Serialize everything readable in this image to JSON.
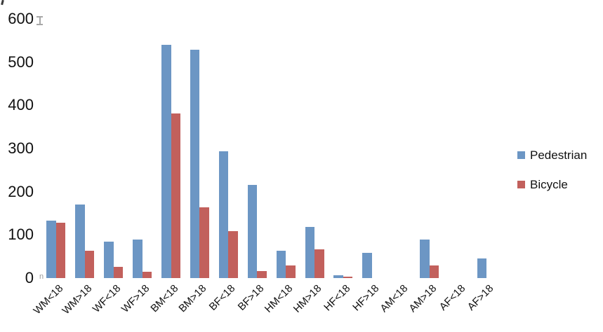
{
  "chart_data": {
    "type": "bar",
    "title": "",
    "xlabel": "",
    "ylabel": "",
    "categories": [
      "WM<18",
      "WM>18",
      "WF<18",
      "WF>18",
      "BM<18",
      "BM>18",
      "BF<18",
      "BF>18",
      "HM<18",
      "HM>18",
      "HF<18",
      "HF>18",
      "AM<18",
      "AM>18",
      "AF<18",
      "AF>18"
    ],
    "series": [
      {
        "name": "Pedestrian",
        "color": "#6C96C4",
        "values": [
          133,
          170,
          84,
          90,
          540,
          529,
          294,
          215,
          64,
          118,
          6,
          58,
          0,
          89,
          0,
          46
        ]
      },
      {
        "name": "Bicycle",
        "color": "#C2605C",
        "values": [
          128,
          63,
          26,
          15,
          381,
          163,
          109,
          17,
          30,
          66,
          3,
          0,
          0,
          30,
          0,
          0
        ]
      }
    ],
    "ylim": [
      0,
      600
    ],
    "yticks": [
      "0",
      "100",
      "200",
      "300",
      "400",
      "500",
      "600"
    ],
    "grid": false,
    "legend_position": "right"
  },
  "artifacts": {
    "stray_glyph": "n"
  }
}
